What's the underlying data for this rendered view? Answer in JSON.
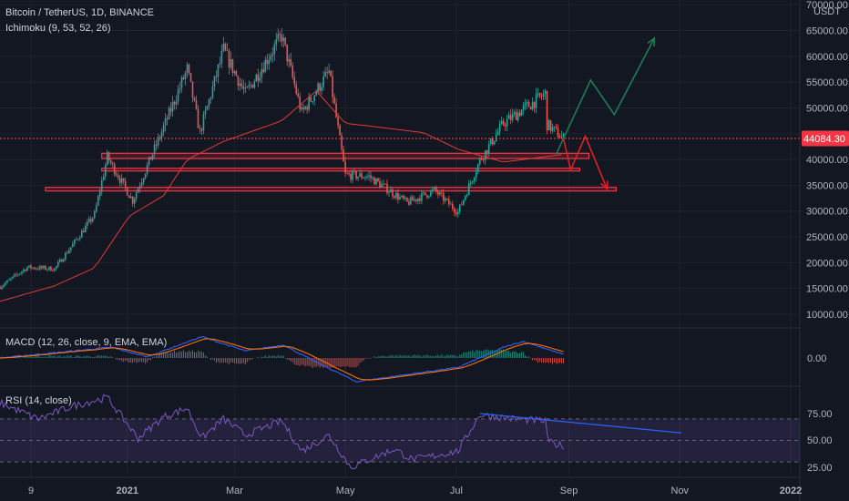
{
  "header": {
    "symbol_line": "Bitcoin / TetherUS, 1D, BINANCE",
    "indicator_line": "Ichimoku (9, 53, 52, 26)",
    "currency": "USDT"
  },
  "macd": {
    "label": "MACD (12, 26, close, 9, EMA, EMA)",
    "zero_label": "0.00"
  },
  "rsi": {
    "label": "RSI (14, close)",
    "ticks": [
      "75.00",
      "50.00",
      "25.00"
    ]
  },
  "price_tag": "44084.30",
  "colors": {
    "background": "#131722",
    "up_candle": "#26a69a",
    "down_candle": "#ef5350",
    "kijun_line": "#e53935",
    "zone": "#f23645",
    "bull_projection": "#1b7c58",
    "bear_projection": "#e02020",
    "macd_line": "#2962ff",
    "signal_line": "#ff6d00",
    "rsi_line": "#7e57c2",
    "trendline": "#2962ff"
  },
  "chart_data": {
    "type": "candlestick",
    "title": "Bitcoin / TetherUS, 1D, BINANCE",
    "y_unit": "USDT",
    "y_ticks": [
      "70000.00",
      "65000.00",
      "60000.00",
      "55000.00",
      "50000.00",
      "45000.00",
      "40000.00",
      "35000.00",
      "30000.00",
      "25000.00",
      "20000.00",
      "15000.00",
      "10000.00"
    ],
    "ylim": [
      7500,
      70000
    ],
    "x_ticks": [
      "9",
      "2021",
      "Mar",
      "May",
      "Jul",
      "Sep",
      "Nov",
      "2022"
    ],
    "last_price": 44084.3,
    "close_path": [
      {
        "date": "2020-11-10",
        "close": 15300
      },
      {
        "date": "2020-11-25",
        "close": 19100
      },
      {
        "date": "2020-12-10",
        "close": 18800
      },
      {
        "date": "2020-12-20",
        "close": 23500
      },
      {
        "date": "2021-01-01",
        "close": 29300
      },
      {
        "date": "2021-01-08",
        "close": 40500
      },
      {
        "date": "2021-01-22",
        "close": 32000
      },
      {
        "date": "2021-02-08",
        "close": 46200
      },
      {
        "date": "2021-02-21",
        "close": 57500
      },
      {
        "date": "2021-02-28",
        "close": 45200
      },
      {
        "date": "2021-03-13",
        "close": 61200
      },
      {
        "date": "2021-03-25",
        "close": 52700
      },
      {
        "date": "2021-04-14",
        "close": 64000
      },
      {
        "date": "2021-04-25",
        "close": 49000
      },
      {
        "date": "2021-05-10",
        "close": 57000
      },
      {
        "date": "2021-05-19",
        "close": 37000
      },
      {
        "date": "2021-06-01",
        "close": 36700
      },
      {
        "date": "2021-06-22",
        "close": 31600
      },
      {
        "date": "2021-07-07",
        "close": 34000
      },
      {
        "date": "2021-07-20",
        "close": 29800
      },
      {
        "date": "2021-08-01",
        "close": 39800
      },
      {
        "date": "2021-08-14",
        "close": 47000
      },
      {
        "date": "2021-08-23",
        "close": 49300
      },
      {
        "date": "2021-09-06",
        "close": 52700
      },
      {
        "date": "2021-09-07",
        "close": 46800
      },
      {
        "date": "2021-09-16",
        "close": 44084
      }
    ],
    "kijun_path": [
      {
        "date": "2020-11-10",
        "value": 12500
      },
      {
        "date": "2020-12-10",
        "value": 15500
      },
      {
        "date": "2021-01-01",
        "value": 19000
      },
      {
        "date": "2021-01-20",
        "value": 29000
      },
      {
        "date": "2021-02-08",
        "value": 33000
      },
      {
        "date": "2021-02-21",
        "value": 40000
      },
      {
        "date": "2021-03-13",
        "value": 43500
      },
      {
        "date": "2021-04-14",
        "value": 47500
      },
      {
        "date": "2021-05-03",
        "value": 53300
      },
      {
        "date": "2021-05-19",
        "value": 47000
      },
      {
        "date": "2021-06-01",
        "value": 46500
      },
      {
        "date": "2021-07-01",
        "value": 45200
      },
      {
        "date": "2021-07-20",
        "value": 42000
      },
      {
        "date": "2021-08-14",
        "value": 39500
      },
      {
        "date": "2021-09-16",
        "value": 41000
      }
    ],
    "zones": [
      {
        "from": "2021-01-05",
        "to": "2021-09-30",
        "low": 40200,
        "high": 41200
      },
      {
        "from": "2021-01-05",
        "to": "2021-09-25",
        "low": 37900,
        "high": 38300
      },
      {
        "from": "2020-12-05",
        "to": "2021-10-15",
        "low": 33900,
        "high": 34600
      }
    ],
    "projections": [
      {
        "name": "bullish",
        "path": [
          {
            "date": "2021-09-12",
            "price": 41000
          },
          {
            "date": "2021-10-01",
            "price": 55400
          },
          {
            "date": "2021-10-14",
            "price": 48700
          },
          {
            "date": "2021-11-05",
            "price": 63500
          }
        ]
      },
      {
        "name": "bearish",
        "path": [
          {
            "date": "2021-09-16",
            "price": 44084
          },
          {
            "date": "2021-09-20",
            "price": 38000
          },
          {
            "date": "2021-09-28",
            "price": 44500
          },
          {
            "date": "2021-10-10",
            "price": 34300
          }
        ]
      }
    ],
    "macd_panel": {
      "ylim": [
        -1,
        1
      ],
      "macd_path": [
        {
          "date": "2020-11-10",
          "value": 0
        },
        {
          "date": "2021-01-10",
          "value": 0.45
        },
        {
          "date": "2021-01-30",
          "value": 0.05
        },
        {
          "date": "2021-03-01",
          "value": 0.9
        },
        {
          "date": "2021-03-25",
          "value": 0.3
        },
        {
          "date": "2021-04-15",
          "value": 0.55
        },
        {
          "date": "2021-05-01",
          "value": -0.1
        },
        {
          "date": "2021-05-25",
          "value": -1.0
        },
        {
          "date": "2021-07-01",
          "value": -0.6
        },
        {
          "date": "2021-07-20",
          "value": -0.4
        },
        {
          "date": "2021-08-14",
          "value": 0.45
        },
        {
          "date": "2021-08-25",
          "value": 0.7
        },
        {
          "date": "2021-09-16",
          "value": 0.15
        }
      ]
    },
    "rsi_panel": {
      "ylim": [
        20,
        95
      ],
      "levels": [
        70,
        50,
        30
      ],
      "rsi_path": [
        {
          "date": "2020-11-10",
          "value": 85
        },
        {
          "date": "2020-12-01",
          "value": 70
        },
        {
          "date": "2020-12-20",
          "value": 82
        },
        {
          "date": "2021-01-08",
          "value": 90
        },
        {
          "date": "2021-01-25",
          "value": 52
        },
        {
          "date": "2021-02-08",
          "value": 72
        },
        {
          "date": "2021-02-21",
          "value": 80
        },
        {
          "date": "2021-03-01",
          "value": 52
        },
        {
          "date": "2021-03-13",
          "value": 70
        },
        {
          "date": "2021-03-25",
          "value": 55
        },
        {
          "date": "2021-04-14",
          "value": 68
        },
        {
          "date": "2021-04-25",
          "value": 40
        },
        {
          "date": "2021-05-10",
          "value": 55
        },
        {
          "date": "2021-05-22",
          "value": 25
        },
        {
          "date": "2021-06-15",
          "value": 42
        },
        {
          "date": "2021-06-25",
          "value": 32
        },
        {
          "date": "2021-07-20",
          "value": 40
        },
        {
          "date": "2021-08-01",
          "value": 74
        },
        {
          "date": "2021-08-20",
          "value": 70
        },
        {
          "date": "2021-09-06",
          "value": 68
        },
        {
          "date": "2021-09-08",
          "value": 48
        },
        {
          "date": "2021-09-16",
          "value": 45
        }
      ],
      "trendline": [
        {
          "date": "2021-08-01",
          "value": 75
        },
        {
          "date": "2021-11-20",
          "value": 57
        }
      ]
    }
  }
}
